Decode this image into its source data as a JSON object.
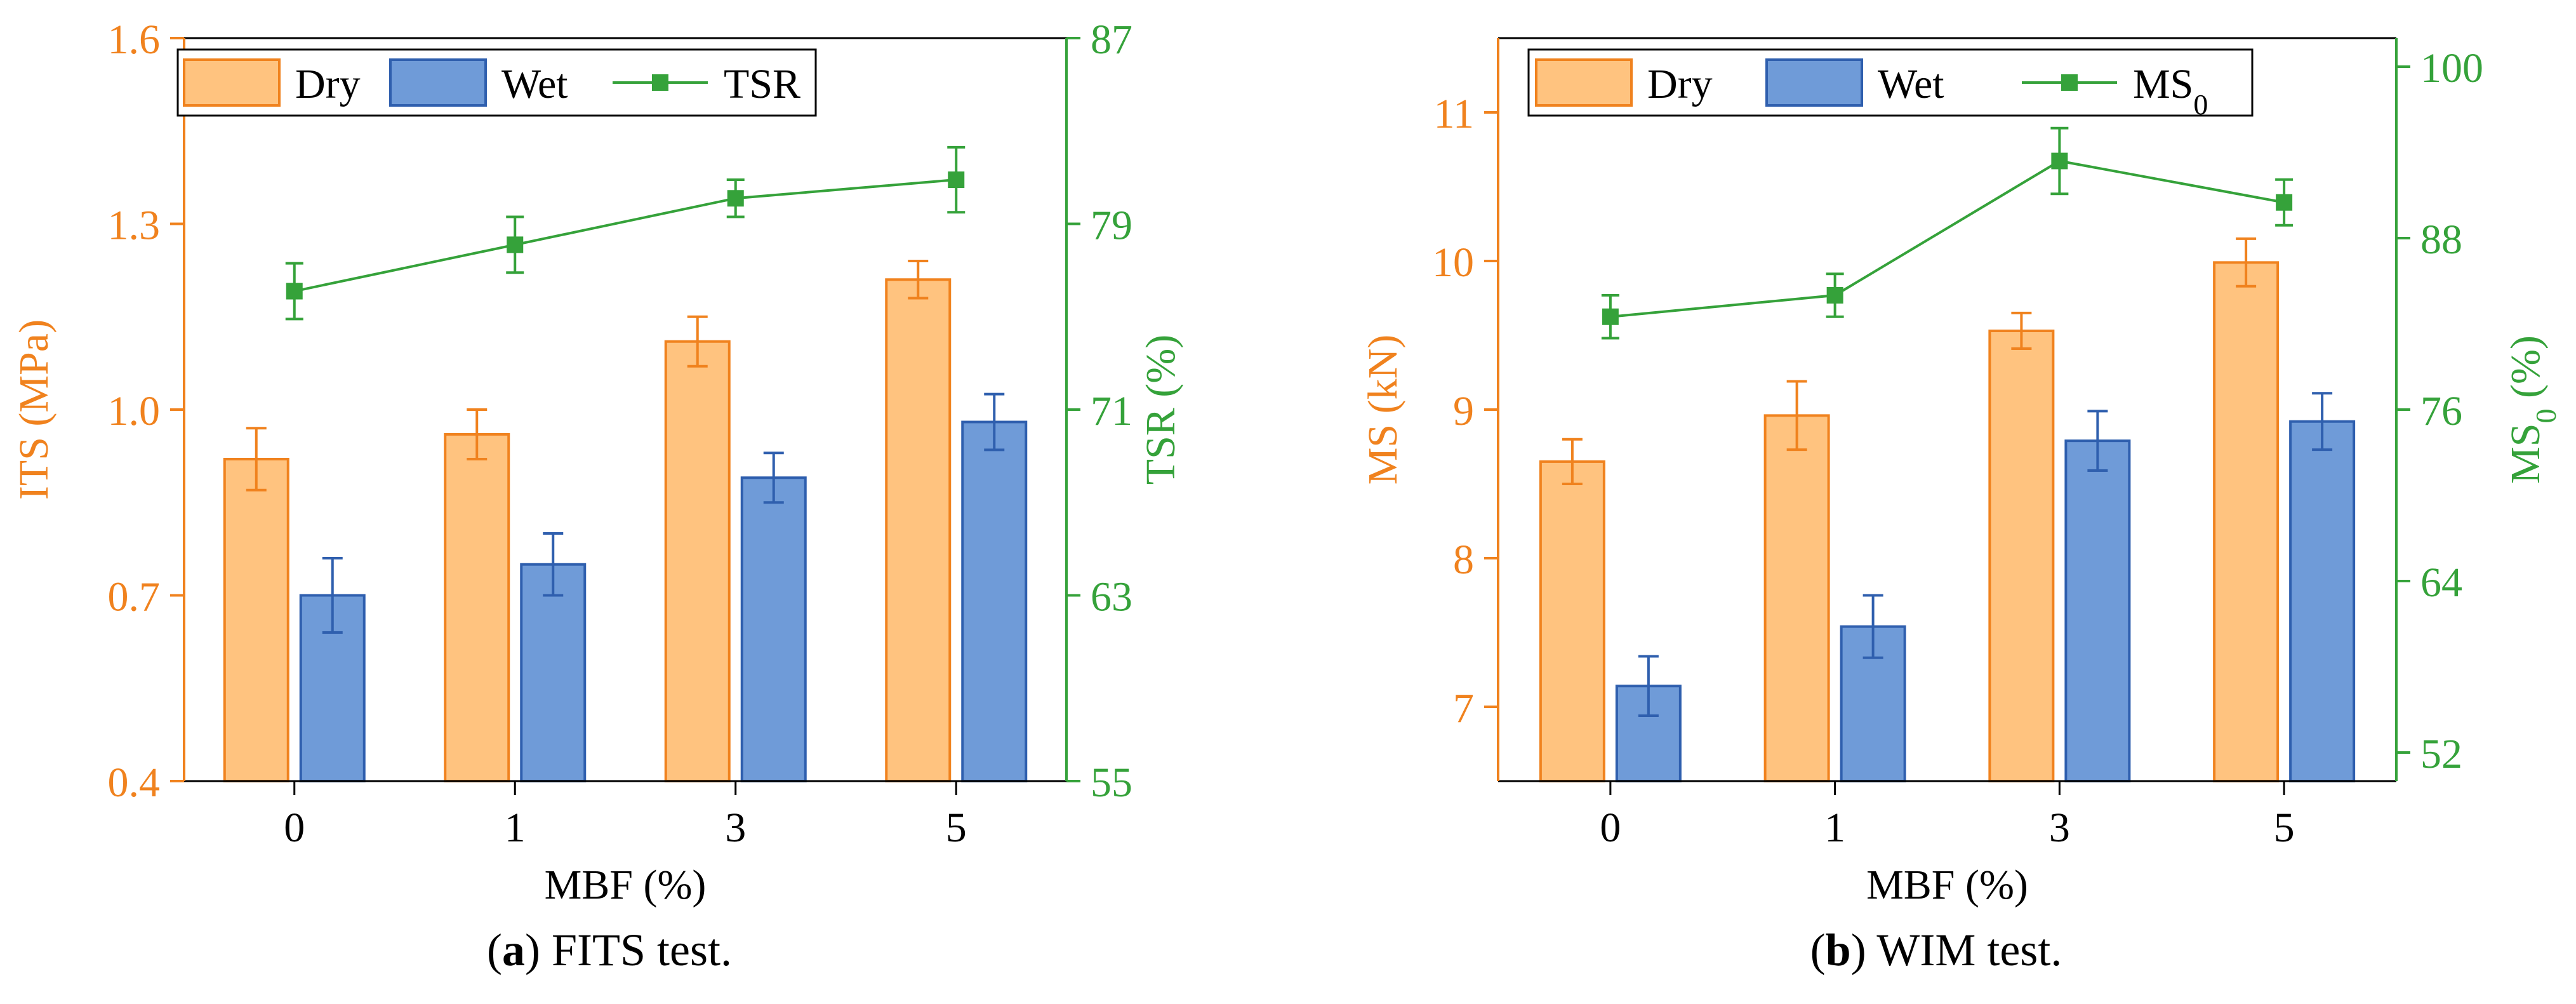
{
  "colors": {
    "dry": "#FFC37F",
    "dry_edge": "#F0821E",
    "wet": "#6F9BD8",
    "wet_edge": "#2F5FAE",
    "line": "#35A23A",
    "axis_left": "#F0821E",
    "axis_right": "#35A23A",
    "axis": "#000000"
  },
  "chart_data": [
    {
      "panel": "a",
      "type": "bar",
      "categories": [
        "0",
        "1",
        "3",
        "5"
      ],
      "xlabel": "MBF (%)",
      "ylabel": "ITS (MPa)",
      "ylim": [
        0.4,
        1.6
      ],
      "yticks": [
        "0.4",
        "0.7",
        "1.0",
        "1.3",
        "1.6"
      ],
      "y2label": "TSR (%)",
      "y2lim": [
        55,
        87
      ],
      "y2ticks": [
        "55",
        "63",
        "71",
        "79",
        "87"
      ],
      "legend_position": "top-left",
      "series": [
        {
          "name": "Dry",
          "kind": "bar",
          "axis": "left",
          "values": [
            0.92,
            0.96,
            1.11,
            1.21
          ],
          "errors": [
            0.05,
            0.04,
            0.04,
            0.03
          ]
        },
        {
          "name": "Wet",
          "kind": "bar",
          "axis": "left",
          "values": [
            0.7,
            0.75,
            0.89,
            0.98
          ],
          "errors": [
            0.06,
            0.05,
            0.04,
            0.045
          ]
        }
      ],
      "line_series": {
        "name": "TSR",
        "name_sub": "",
        "kind": "line",
        "axis": "right",
        "values": [
          76.1,
          78.1,
          80.1,
          80.9
        ],
        "errors": [
          1.2,
          1.2,
          0.8,
          1.4
        ]
      },
      "caption_label": "a",
      "caption_text": " FITS test.",
      "caption_open": "(",
      "caption_close": ")"
    },
    {
      "panel": "b",
      "type": "bar",
      "categories": [
        "0",
        "1",
        "3",
        "5"
      ],
      "xlabel": "MBF (%)",
      "ylabel": "MS (kN)",
      "ylim": [
        6.5,
        11.5
      ],
      "yticks": [
        "7",
        "8",
        "9",
        "10",
        "11"
      ],
      "y2label": "MS",
      "y2label_sub": "0",
      "y2label_tail": " (%)",
      "y2lim": [
        50,
        102
      ],
      "y2ticks": [
        "52",
        "64",
        "76",
        "88",
        "100"
      ],
      "legend_position": "top-left",
      "series": [
        {
          "name": "Dry",
          "kind": "bar",
          "axis": "left",
          "values": [
            8.65,
            8.96,
            9.53,
            9.99
          ],
          "errors": [
            0.15,
            0.23,
            0.12,
            0.16
          ]
        },
        {
          "name": "Wet",
          "kind": "bar",
          "axis": "left",
          "values": [
            7.14,
            7.54,
            8.79,
            8.92
          ],
          "errors": [
            0.2,
            0.21,
            0.2,
            0.19
          ]
        }
      ],
      "line_series": {
        "name": "MS",
        "name_sub": "0",
        "kind": "line",
        "axis": "right",
        "values": [
          82.5,
          84.0,
          93.4,
          90.5
        ],
        "errors": [
          1.5,
          1.5,
          2.3,
          1.6
        ]
      },
      "caption_label": "b",
      "caption_text": " WIM test.",
      "caption_open": "(",
      "caption_close": ")"
    }
  ]
}
